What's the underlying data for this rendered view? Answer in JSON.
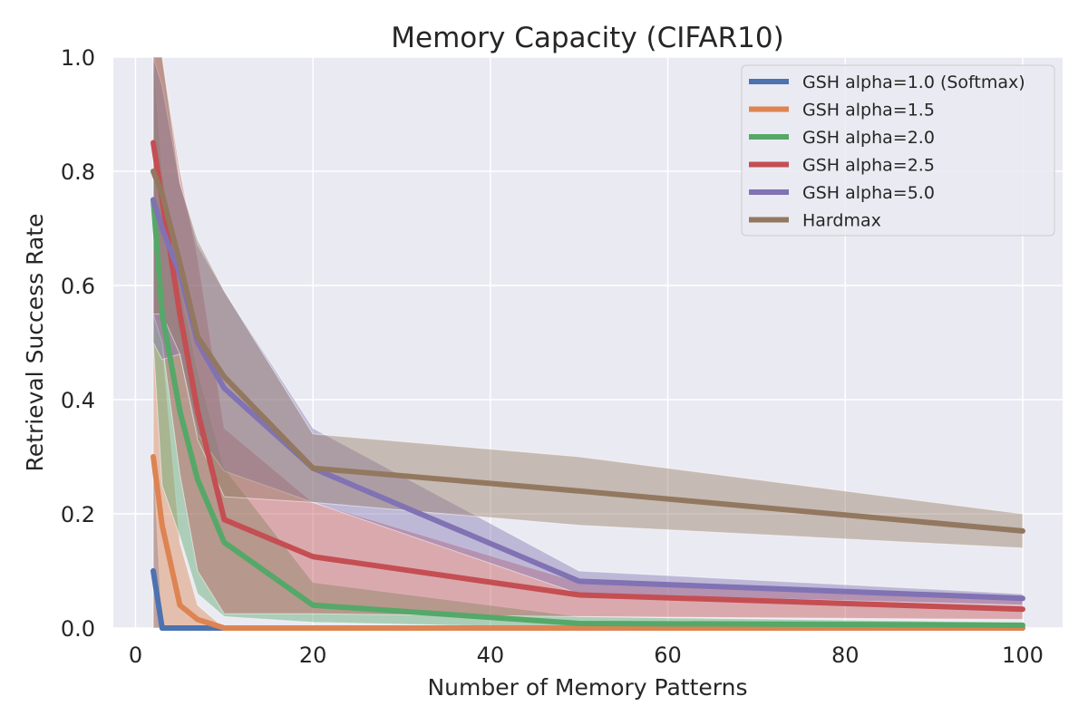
{
  "chart_data": {
    "type": "line",
    "title": "Memory Capacity (CIFAR10)",
    "xlabel": "Number of Memory Patterns",
    "ylabel": "Retrieval Success Rate",
    "xlim": [
      -2.5,
      104.5
    ],
    "ylim": [
      0.0,
      1.0
    ],
    "xticks": [
      0,
      20,
      40,
      60,
      80,
      100
    ],
    "yticks": [
      0.0,
      0.2,
      0.4,
      0.6,
      0.8,
      1.0
    ],
    "xtick_labels": [
      "0",
      "20",
      "40",
      "60",
      "80",
      "100"
    ],
    "ytick_labels": [
      "0.0",
      "0.2",
      "0.4",
      "0.6",
      "0.8",
      "1.0"
    ],
    "grid": true,
    "legend_position": "top-right",
    "x": [
      2,
      3,
      5,
      7,
      10,
      20,
      50,
      100
    ],
    "series": [
      {
        "name": "GSH alpha=1.0 (Softmax)",
        "color": "#4c72b0",
        "values": [
          0.1,
          0.0,
          0.0,
          0.0,
          0.0,
          0.0,
          0.0,
          0.0
        ],
        "lower": [
          0.0,
          0.0,
          0.0,
          0.0,
          0.0,
          0.0,
          0.0,
          0.0
        ],
        "upper": [
          0.3,
          0.0,
          0.0,
          0.0,
          0.0,
          0.0,
          0.0,
          0.0
        ]
      },
      {
        "name": "GSH alpha=1.5",
        "color": "#dd8452",
        "values": [
          0.3,
          0.18,
          0.04,
          0.015,
          0.0,
          0.0,
          0.0,
          0.0
        ],
        "lower": [
          0.0,
          0.0,
          0.0,
          0.0,
          0.0,
          0.0,
          0.0,
          0.0
        ],
        "upper": [
          0.55,
          0.5,
          0.15,
          0.04,
          0.0,
          0.0,
          0.0,
          0.0
        ]
      },
      {
        "name": "GSH alpha=2.0",
        "color": "#55a868",
        "values": [
          0.75,
          0.55,
          0.38,
          0.26,
          0.15,
          0.04,
          0.008,
          0.005
        ],
        "lower": [
          0.5,
          0.25,
          0.16,
          0.06,
          0.02,
          0.01,
          0.0,
          0.0
        ],
        "upper": [
          1.0,
          0.8,
          0.6,
          0.45,
          0.28,
          0.08,
          0.02,
          0.01
        ]
      },
      {
        "name": "GSH alpha=2.5",
        "color": "#c44e52",
        "values": [
          0.85,
          0.75,
          0.55,
          0.38,
          0.19,
          0.125,
          0.058,
          0.033
        ],
        "lower": [
          0.55,
          0.5,
          0.27,
          0.1,
          0.025,
          0.025,
          0.02,
          0.015
        ],
        "upper": [
          1.0,
          1.0,
          0.8,
          0.65,
          0.35,
          0.22,
          0.08,
          0.05
        ]
      },
      {
        "name": "GSH alpha=5.0",
        "color": "#8172b3",
        "values": [
          0.75,
          0.7,
          0.62,
          0.5,
          0.42,
          0.28,
          0.082,
          0.052
        ],
        "lower": [
          0.5,
          0.47,
          0.48,
          0.34,
          0.275,
          0.22,
          0.06,
          0.04
        ],
        "upper": [
          1.0,
          0.95,
          0.78,
          0.67,
          0.59,
          0.35,
          0.1,
          0.06
        ]
      },
      {
        "name": "Hardmax",
        "color": "#937860",
        "values": [
          0.8,
          0.76,
          0.64,
          0.51,
          0.44,
          0.28,
          0.24,
          0.17
        ],
        "lower": [
          0.55,
          0.55,
          0.48,
          0.33,
          0.23,
          0.22,
          0.18,
          0.14
        ],
        "upper": [
          1.0,
          1.0,
          0.78,
          0.68,
          0.59,
          0.34,
          0.3,
          0.2
        ]
      }
    ]
  }
}
